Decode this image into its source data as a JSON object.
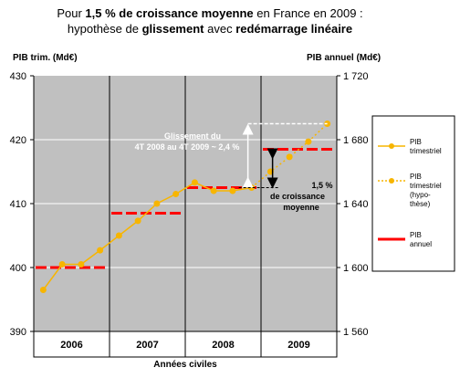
{
  "title": {
    "line1_a": "Pour ",
    "line1_b": "1,5 %  de croissance moyenne",
    "line1_c": " en France en 2009 :",
    "line2_a": "hypothèse de ",
    "line2_b": "glissement",
    "line2_c": " avec ",
    "line2_d": "redémarrage linéaire"
  },
  "chart_data": {
    "type": "line",
    "categories": [
      "2006",
      "2007",
      "2008",
      "2009"
    ],
    "xlabel": "Années civiles",
    "ylabel_left": "PIB trim. (Md€)",
    "ylabel_right": "PIB annuel (Md€)",
    "y_left": {
      "min": 390,
      "max": 430,
      "ticks": [
        "390",
        "400",
        "410",
        "420",
        "430"
      ]
    },
    "y_right": {
      "min": 1560,
      "max": 1720,
      "ticks": [
        "1 560",
        "1 600",
        "1 640",
        "1 680",
        "1 720"
      ]
    },
    "grid": "horizontal",
    "legend_position": "right",
    "series": [
      {
        "name": "PIB trimestriel",
        "axis": "left",
        "quarters": [
          {
            "year": 2006,
            "q": 1,
            "value": 396.5
          },
          {
            "year": 2006,
            "q": 2,
            "value": 400.5
          },
          {
            "year": 2006,
            "q": 3,
            "value": 400.5
          },
          {
            "year": 2006,
            "q": 4,
            "value": 402.7
          },
          {
            "year": 2007,
            "q": 1,
            "value": 405.0
          },
          {
            "year": 2007,
            "q": 2,
            "value": 407.3
          },
          {
            "year": 2007,
            "q": 3,
            "value": 410.0
          },
          {
            "year": 2007,
            "q": 4,
            "value": 411.5
          },
          {
            "year": 2008,
            "q": 1,
            "value": 413.3
          },
          {
            "year": 2008,
            "q": 2,
            "value": 412.0
          },
          {
            "year": 2008,
            "q": 3,
            "value": 412.0
          },
          {
            "year": 2008,
            "q": 4,
            "value": 412.5
          }
        ]
      },
      {
        "name": "PIB trimestriel (hypothèse)",
        "axis": "left",
        "quarters": [
          {
            "year": 2008,
            "q": 4,
            "value": 412.5
          },
          {
            "year": 2009,
            "q": 1,
            "value": 415.0
          },
          {
            "year": 2009,
            "q": 2,
            "value": 417.3
          },
          {
            "year": 2009,
            "q": 3,
            "value": 419.7
          },
          {
            "year": 2009,
            "q": 4,
            "value": 422.5
          }
        ]
      },
      {
        "name": "PIB annuel",
        "axis": "right",
        "years": [
          {
            "year": 2006,
            "value": 1600
          },
          {
            "year": 2007,
            "value": 1634
          },
          {
            "year": 2008,
            "value": 1650
          },
          {
            "year": 2009,
            "value": 1674
          }
        ]
      }
    ],
    "annotations": {
      "glissement_line1": "Glissement du",
      "glissement_line2": "4T 2008 au 4T 2009 ~ 2,4 %",
      "croissance_line1": "1,5 %",
      "croissance_line2": "de croissance",
      "croissance_line3": "moyenne"
    },
    "legend": {
      "item1": [
        "PIB",
        "trimestriel"
      ],
      "item2": [
        "PIB",
        "trimestriel",
        "(hypo-",
        "thèse)"
      ],
      "item3": [
        "PIB",
        "annuel"
      ]
    }
  },
  "colors": {
    "plot_bg": "#c0c0c0",
    "quarterly": "#f7b500",
    "annual": "#ff0000",
    "grid": "#ffffff"
  }
}
